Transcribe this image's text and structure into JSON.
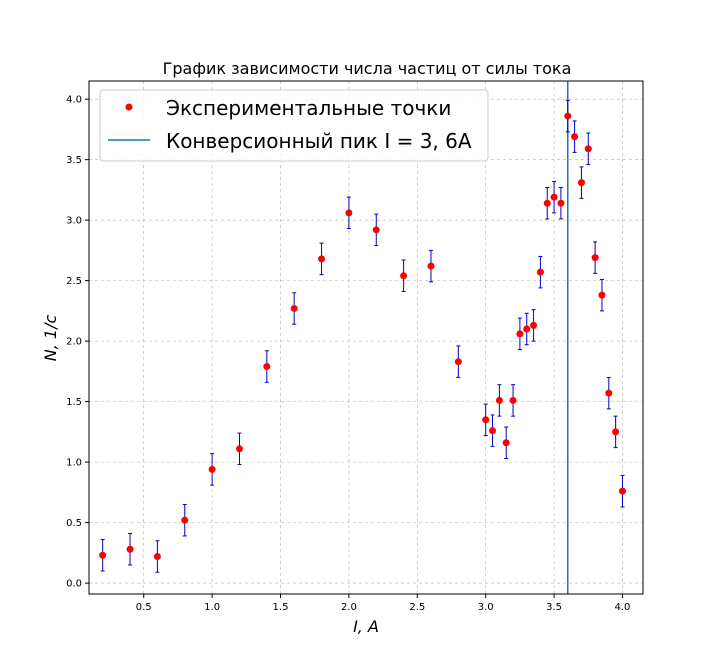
{
  "chart_data": {
    "type": "scatter",
    "title": "График зависимости числа частиц от силы тока",
    "xlabel": "I, A",
    "ylabel": "N, 1/с",
    "xlim": [
      0.1,
      4.15
    ],
    "ylim": [
      -0.09,
      4.15
    ],
    "xticks": [
      0.5,
      1.0,
      1.5,
      2.0,
      2.5,
      3.0,
      3.5,
      4.0
    ],
    "xtick_labels": [
      "0.5",
      "1.0",
      "1.5",
      "2.0",
      "2.5",
      "3.0",
      "3.5",
      "4.0"
    ],
    "yticks": [
      0.0,
      0.5,
      1.0,
      1.5,
      2.0,
      2.5,
      3.0,
      3.5,
      4.0
    ],
    "ytick_labels": [
      "0.0",
      "0.5",
      "1.0",
      "1.5",
      "2.0",
      "2.5",
      "3.0",
      "3.5",
      "4.0"
    ],
    "grid": true,
    "legend_position": "top-left",
    "colors": {
      "points": "#ff0000",
      "errorbars": "#0000cc",
      "vline": "#1f77b4"
    },
    "series": [
      {
        "name": "Экспериментальные точки",
        "kind": "points-with-errorbars",
        "x": [
          0.2,
          0.4,
          0.6,
          0.8,
          1.0,
          1.2,
          1.4,
          1.6,
          1.8,
          2.0,
          2.2,
          2.4,
          2.6,
          2.8,
          3.0,
          3.05,
          3.1,
          3.15,
          3.2,
          3.25,
          3.3,
          3.35,
          3.4,
          3.45,
          3.5,
          3.55,
          3.6,
          3.65,
          3.7,
          3.75,
          3.8,
          3.85,
          3.9,
          3.95,
          4.0
        ],
        "y": [
          0.23,
          0.28,
          0.22,
          0.52,
          0.94,
          1.11,
          1.79,
          2.27,
          2.68,
          3.06,
          2.92,
          2.54,
          2.62,
          1.83,
          1.35,
          1.26,
          1.51,
          1.16,
          1.51,
          2.06,
          2.1,
          2.13,
          2.57,
          3.14,
          3.19,
          3.14,
          3.86,
          3.69,
          3.31,
          3.59,
          2.69,
          2.38,
          1.57,
          1.25,
          0.76
        ],
        "yerr": 0.13
      },
      {
        "name": "Конверсионный пик I = 3, 6A",
        "kind": "vertical-line",
        "x": 3.6
      }
    ]
  }
}
